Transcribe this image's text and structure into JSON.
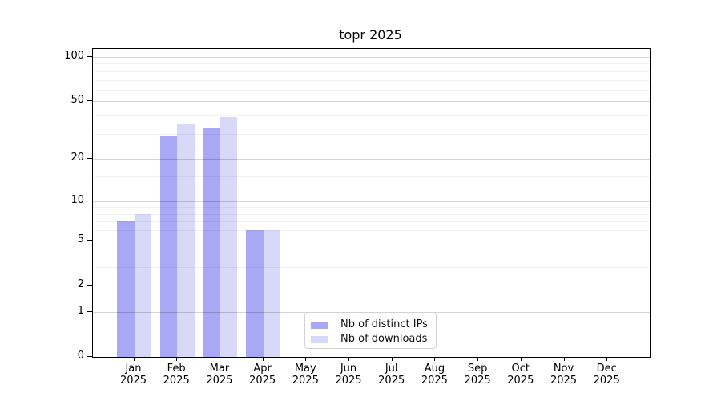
{
  "chart_data": {
    "type": "bar",
    "title": "topr 2025",
    "categories": [
      "Jan",
      "Feb",
      "Mar",
      "Apr",
      "May",
      "Jun",
      "Jul",
      "Aug",
      "Sep",
      "Oct",
      "Nov",
      "Dec"
    ],
    "year": "2025",
    "series": [
      {
        "name": "Nb of distinct IPs",
        "color": "#a8a8f4",
        "values": [
          7,
          29,
          33,
          6,
          0,
          0,
          0,
          0,
          0,
          0,
          0,
          0
        ]
      },
      {
        "name": "Nb of downloads",
        "color": "#d8d8f9",
        "values": [
          8,
          35,
          39,
          6,
          0,
          0,
          0,
          0,
          0,
          0,
          0,
          0
        ]
      }
    ],
    "xlabel": "",
    "ylabel": "",
    "y_scale": "log1p",
    "ylim": [
      0,
      113.3
    ],
    "y_major_ticks": [
      0,
      1,
      2,
      5,
      10,
      20,
      50,
      100
    ],
    "y_minor_gridlines": [
      3,
      4,
      6,
      7,
      8,
      9,
      15,
      30,
      40,
      60,
      70,
      80,
      90
    ],
    "grid": "on",
    "legend_position": "lower center",
    "colors": {
      "frame": "#000000",
      "major_grid": "#d4d4d4",
      "minor_grid": "#f2f2f2",
      "background": "#ffffff"
    }
  }
}
